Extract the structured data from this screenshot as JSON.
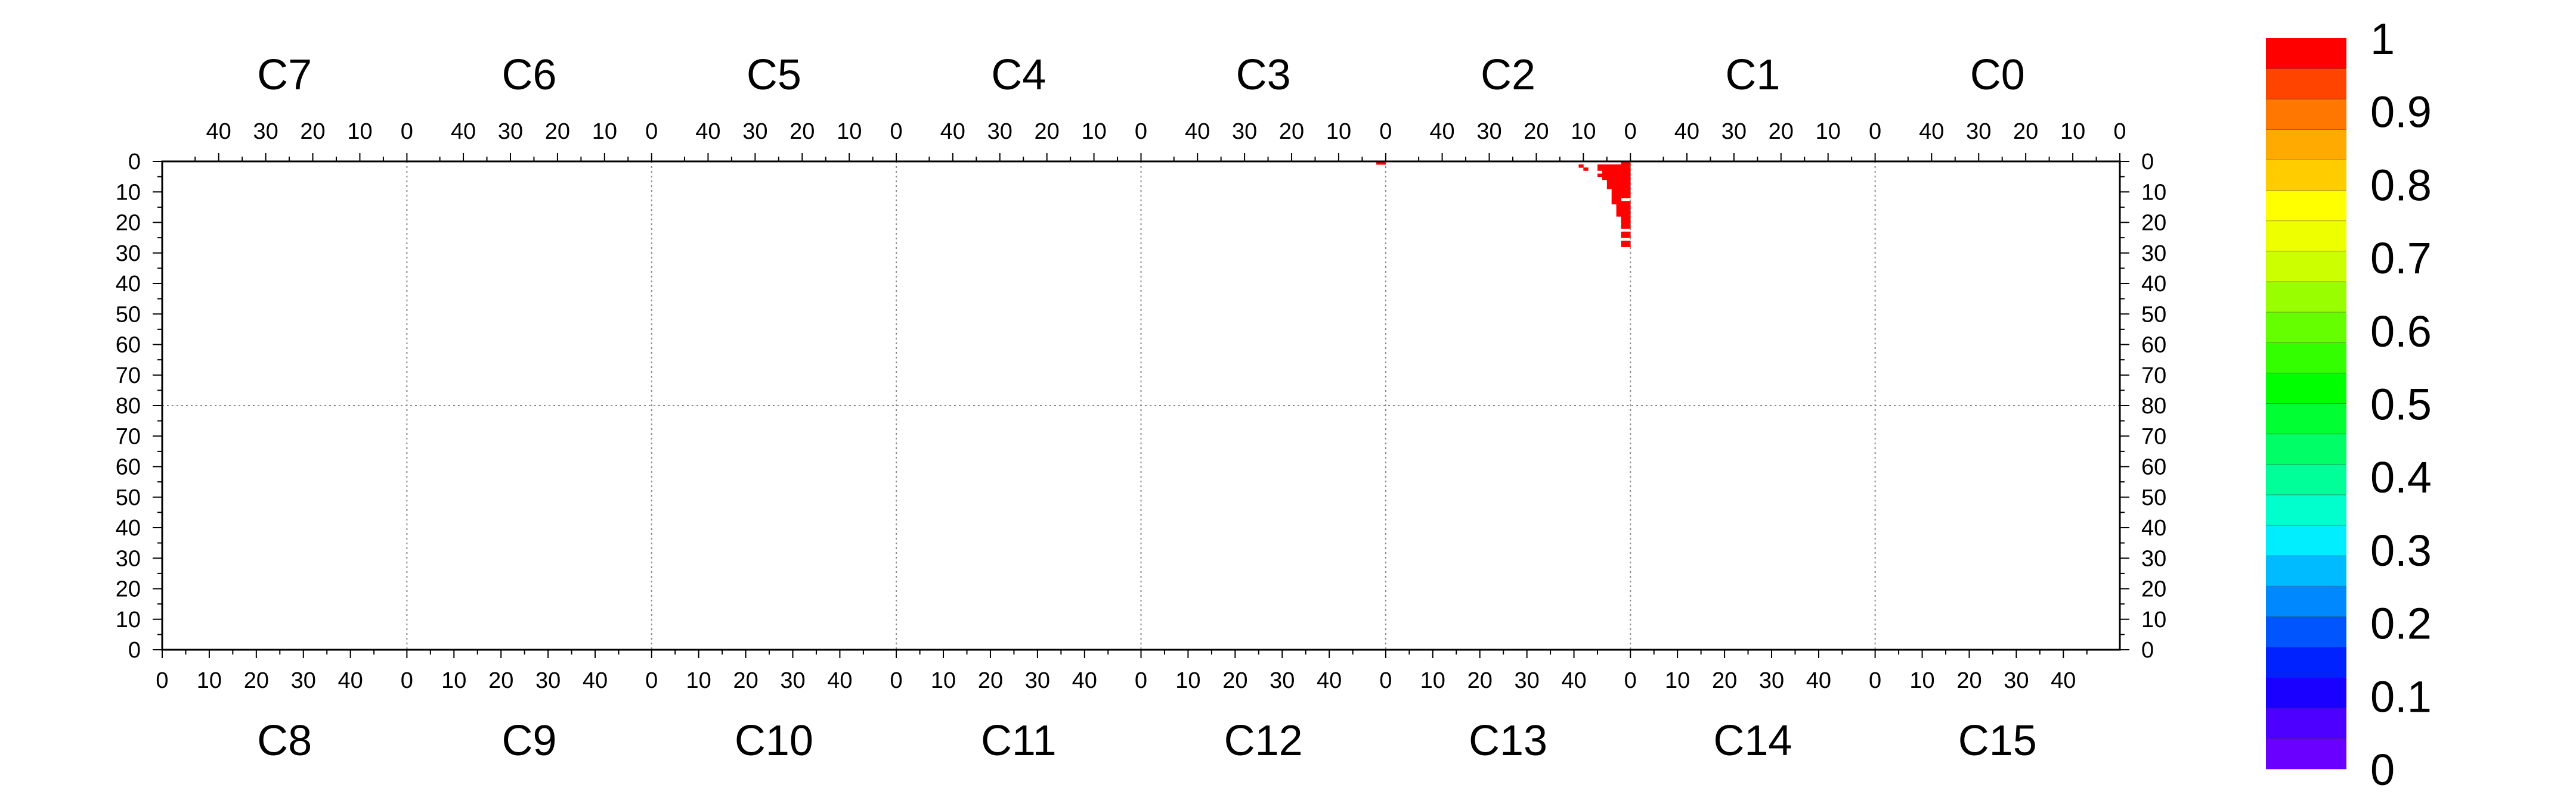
{
  "chart_data": {
    "type": "heatmap",
    "chips_top": [
      "C7",
      "C6",
      "C5",
      "C4",
      "C3",
      "C2",
      "C1",
      "C0"
    ],
    "chips_bottom": [
      "C8",
      "C9",
      "C10",
      "C11",
      "C12",
      "C13",
      "C14",
      "C15"
    ],
    "top_x_ticks": [
      "40",
      "30",
      "20",
      "10",
      "0"
    ],
    "top_x_tick_values": [
      40,
      30,
      20,
      10,
      0
    ],
    "bottom_x_ticks": [
      "0",
      "10",
      "20",
      "30",
      "40"
    ],
    "bottom_x_tick_values": [
      0,
      10,
      20,
      30,
      40
    ],
    "right_edge_tick": "0",
    "y_ticks_top": [
      "0",
      "10",
      "20",
      "30",
      "40",
      "50",
      "60",
      "70",
      "80"
    ],
    "y_ticks_bottom": [
      "70",
      "60",
      "50",
      "40",
      "30",
      "20",
      "10",
      "0"
    ],
    "column_range": [
      0,
      52
    ],
    "row_range_per_half": [
      0,
      80
    ],
    "colorbar": {
      "labels": [
        "1",
        "0.9",
        "0.8",
        "0.7",
        "0.6",
        "0.5",
        "0.4",
        "0.3",
        "0.2",
        "0.1",
        "0"
      ],
      "range": [
        0,
        1
      ],
      "colors": [
        "#6a00ff",
        "#4d00ff",
        "#1a00ff",
        "#0022ff",
        "#0055ff",
        "#0088ff",
        "#00bbff",
        "#00eeff",
        "#00ffcc",
        "#00ff99",
        "#00ff66",
        "#00ff33",
        "#00ff00",
        "#33ff00",
        "#66ff00",
        "#99ff00",
        "#ccff00",
        "#eeff00",
        "#ffff00",
        "#ffcc00",
        "#ffaa00",
        "#ff7700",
        "#ff4400",
        "#ff0000"
      ]
    },
    "cells": [
      {
        "chip": "C3",
        "col": 0,
        "row": 0,
        "value": 1
      },
      {
        "chip": "C3",
        "col": 1,
        "row": 0,
        "value": 1
      },
      {
        "chip": "C2",
        "col": 10,
        "row": 1,
        "value": 1
      },
      {
        "chip": "C2",
        "col": 9,
        "row": 2,
        "value": 1
      },
      {
        "chip": "C2",
        "col": 0,
        "row": 0,
        "value": 1
      },
      {
        "chip": "C2",
        "col": 1,
        "row": 0,
        "value": 1
      },
      {
        "chip": "C2",
        "col": 0,
        "row": 1,
        "value": 1
      },
      {
        "chip": "C2",
        "col": 1,
        "row": 1,
        "value": 1
      },
      {
        "chip": "C2",
        "col": 2,
        "row": 1,
        "value": 1
      },
      {
        "chip": "C2",
        "col": 3,
        "row": 1,
        "value": 1
      },
      {
        "chip": "C2",
        "col": 4,
        "row": 1,
        "value": 1
      },
      {
        "chip": "C2",
        "col": 5,
        "row": 1,
        "value": 1
      },
      {
        "chip": "C2",
        "col": 6,
        "row": 1,
        "value": 1
      },
      {
        "chip": "C2",
        "col": 0,
        "row": 2,
        "value": 1
      },
      {
        "chip": "C2",
        "col": 1,
        "row": 2,
        "value": 1
      },
      {
        "chip": "C2",
        "col": 2,
        "row": 2,
        "value": 1
      },
      {
        "chip": "C2",
        "col": 3,
        "row": 2,
        "value": 1
      },
      {
        "chip": "C2",
        "col": 4,
        "row": 2,
        "value": 1
      },
      {
        "chip": "C2",
        "col": 5,
        "row": 2,
        "value": 1
      },
      {
        "chip": "C2",
        "col": 6,
        "row": 2,
        "value": 1
      },
      {
        "chip": "C2",
        "col": 0,
        "row": 3,
        "value": 1
      },
      {
        "chip": "C2",
        "col": 1,
        "row": 3,
        "value": 1
      },
      {
        "chip": "C2",
        "col": 2,
        "row": 3,
        "value": 1
      },
      {
        "chip": "C2",
        "col": 3,
        "row": 3,
        "value": 1
      },
      {
        "chip": "C2",
        "col": 4,
        "row": 3,
        "value": 1
      },
      {
        "chip": "C2",
        "col": 5,
        "row": 3,
        "value": 1
      },
      {
        "chip": "C2",
        "col": 0,
        "row": 4,
        "value": 1
      },
      {
        "chip": "C2",
        "col": 1,
        "row": 4,
        "value": 1
      },
      {
        "chip": "C2",
        "col": 2,
        "row": 4,
        "value": 1
      },
      {
        "chip": "C2",
        "col": 3,
        "row": 4,
        "value": 1
      },
      {
        "chip": "C2",
        "col": 4,
        "row": 4,
        "value": 1
      },
      {
        "chip": "C2",
        "col": 5,
        "row": 4,
        "value": 1
      },
      {
        "chip": "C2",
        "col": 6,
        "row": 4,
        "value": 1
      },
      {
        "chip": "C2",
        "col": 0,
        "row": 5,
        "value": 1
      },
      {
        "chip": "C2",
        "col": 1,
        "row": 5,
        "value": 1
      },
      {
        "chip": "C2",
        "col": 2,
        "row": 5,
        "value": 1
      },
      {
        "chip": "C2",
        "col": 3,
        "row": 5,
        "value": 1
      },
      {
        "chip": "C2",
        "col": 4,
        "row": 5,
        "value": 1
      },
      {
        "chip": "C2",
        "col": 5,
        "row": 5,
        "value": 1
      },
      {
        "chip": "C2",
        "col": 0,
        "row": 6,
        "value": 1
      },
      {
        "chip": "C2",
        "col": 1,
        "row": 6,
        "value": 1
      },
      {
        "chip": "C2",
        "col": 2,
        "row": 6,
        "value": 1
      },
      {
        "chip": "C2",
        "col": 3,
        "row": 6,
        "value": 1
      },
      {
        "chip": "C2",
        "col": 4,
        "row": 6,
        "value": 1
      },
      {
        "chip": "C2",
        "col": 0,
        "row": 7,
        "value": 1
      },
      {
        "chip": "C2",
        "col": 1,
        "row": 7,
        "value": 1
      },
      {
        "chip": "C2",
        "col": 2,
        "row": 7,
        "value": 1
      },
      {
        "chip": "C2",
        "col": 3,
        "row": 7,
        "value": 1
      },
      {
        "chip": "C2",
        "col": 4,
        "row": 7,
        "value": 1
      },
      {
        "chip": "C2",
        "col": 0,
        "row": 8,
        "value": 1
      },
      {
        "chip": "C2",
        "col": 1,
        "row": 8,
        "value": 1
      },
      {
        "chip": "C2",
        "col": 2,
        "row": 8,
        "value": 1
      },
      {
        "chip": "C2",
        "col": 3,
        "row": 8,
        "value": 1
      },
      {
        "chip": "C2",
        "col": 4,
        "row": 8,
        "value": 1
      },
      {
        "chip": "C2",
        "col": 0,
        "row": 9,
        "value": 1
      },
      {
        "chip": "C2",
        "col": 1,
        "row": 9,
        "value": 1
      },
      {
        "chip": "C2",
        "col": 2,
        "row": 9,
        "value": 1
      },
      {
        "chip": "C2",
        "col": 3,
        "row": 9,
        "value": 1
      },
      {
        "chip": "C2",
        "col": 0,
        "row": 10,
        "value": 1
      },
      {
        "chip": "C2",
        "col": 1,
        "row": 10,
        "value": 1
      },
      {
        "chip": "C2",
        "col": 2,
        "row": 10,
        "value": 1
      },
      {
        "chip": "C2",
        "col": 3,
        "row": 10,
        "value": 1
      },
      {
        "chip": "C2",
        "col": 0,
        "row": 11,
        "value": 1
      },
      {
        "chip": "C2",
        "col": 1,
        "row": 11,
        "value": 1
      },
      {
        "chip": "C2",
        "col": 2,
        "row": 11,
        "value": 1
      },
      {
        "chip": "C2",
        "col": 3,
        "row": 11,
        "value": 1
      },
      {
        "chip": "C2",
        "col": 2,
        "row": 12,
        "value": 1
      },
      {
        "chip": "C2",
        "col": 3,
        "row": 12,
        "value": 1
      },
      {
        "chip": "C2",
        "col": 0,
        "row": 13,
        "value": 1
      },
      {
        "chip": "C2",
        "col": 1,
        "row": 13,
        "value": 1
      },
      {
        "chip": "C2",
        "col": 2,
        "row": 13,
        "value": 1
      },
      {
        "chip": "C2",
        "col": 3,
        "row": 13,
        "value": 1
      },
      {
        "chip": "C2",
        "col": 0,
        "row": 14,
        "value": 1
      },
      {
        "chip": "C2",
        "col": 1,
        "row": 14,
        "value": 1
      },
      {
        "chip": "C2",
        "col": 2,
        "row": 14,
        "value": 1
      },
      {
        "chip": "C2",
        "col": 0,
        "row": 15,
        "value": 1
      },
      {
        "chip": "C2",
        "col": 1,
        "row": 15,
        "value": 1
      },
      {
        "chip": "C2",
        "col": 2,
        "row": 15,
        "value": 1
      },
      {
        "chip": "C2",
        "col": 0,
        "row": 16,
        "value": 1
      },
      {
        "chip": "C2",
        "col": 1,
        "row": 16,
        "value": 1
      },
      {
        "chip": "C2",
        "col": 2,
        "row": 16,
        "value": 1
      },
      {
        "chip": "C2",
        "col": 0,
        "row": 17,
        "value": 1
      },
      {
        "chip": "C2",
        "col": 1,
        "row": 17,
        "value": 1
      },
      {
        "chip": "C2",
        "col": 2,
        "row": 17,
        "value": 1
      },
      {
        "chip": "C2",
        "col": 0,
        "row": 18,
        "value": 1
      },
      {
        "chip": "C2",
        "col": 1,
        "row": 18,
        "value": 1
      },
      {
        "chip": "C2",
        "col": 0,
        "row": 19,
        "value": 1
      },
      {
        "chip": "C2",
        "col": 1,
        "row": 19,
        "value": 1
      },
      {
        "chip": "C2",
        "col": 0,
        "row": 20,
        "value": 1
      },
      {
        "chip": "C2",
        "col": 1,
        "row": 20,
        "value": 1
      },
      {
        "chip": "C2",
        "col": 0,
        "row": 21,
        "value": 1
      },
      {
        "chip": "C2",
        "col": 1,
        "row": 21,
        "value": 1
      },
      {
        "chip": "C2",
        "col": 0,
        "row": 23,
        "value": 1
      },
      {
        "chip": "C2",
        "col": 1,
        "row": 23,
        "value": 1
      },
      {
        "chip": "C2",
        "col": 0,
        "row": 24,
        "value": 1
      },
      {
        "chip": "C2",
        "col": 1,
        "row": 24,
        "value": 1
      },
      {
        "chip": "C2",
        "col": 0,
        "row": 26,
        "value": 1
      },
      {
        "chip": "C2",
        "col": 1,
        "row": 26,
        "value": 1
      },
      {
        "chip": "C2",
        "col": 0,
        "row": 27,
        "value": 1
      },
      {
        "chip": "C2",
        "col": 1,
        "row": 27,
        "value": 1
      }
    ]
  }
}
